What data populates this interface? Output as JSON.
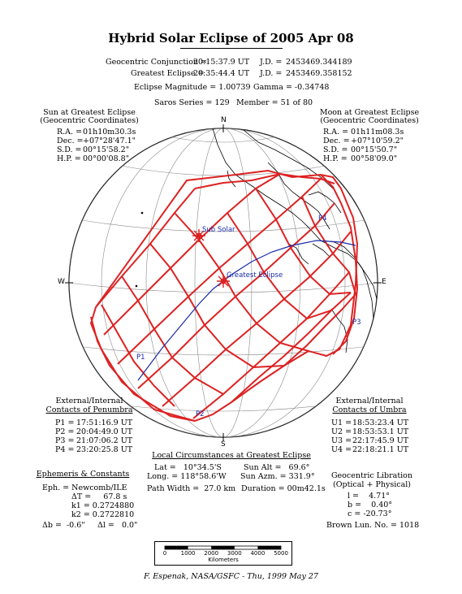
{
  "title": "Hybrid Solar Eclipse of 2005 Apr 08",
  "header": {
    "conj_label": "Geocentric Conjunction =",
    "conj_time": "20:15:37.9 UT",
    "conj_jd_label": "J.D. =",
    "conj_jd": "2453469.344189",
    "ge_label": "Greatest Eclipse =",
    "ge_time": "20:35:44.4 UT",
    "ge_jd_label": "J.D. =",
    "ge_jd": "2453469.358152",
    "magnitude": "Eclipse Magnitude = 1.00739",
    "gamma": "Gamma = -0.34748",
    "saros": "Saros Series = 129",
    "member": "Member = 51 of 80"
  },
  "sun": {
    "title1": "Sun at Greatest Eclipse",
    "title2": "(Geocentric Coordinates)",
    "rows": [
      {
        "label": "R.A. =",
        "value": "01h10m30.3s"
      },
      {
        "label": "Dec. =",
        "value": "+07°28'47.1\""
      },
      {
        "label": "S.D. =",
        "value": "00°15'58.2\""
      },
      {
        "label": "H.P. =",
        "value": "00°00'08.8\""
      }
    ]
  },
  "moon": {
    "title1": "Moon at Greatest Eclipse",
    "title2": "(Geocentric Coordinates)",
    "rows": [
      {
        "label": "R.A. =",
        "value": "01h11m08.3s"
      },
      {
        "label": "Dec. =",
        "value": "+07°10'59.2\""
      },
      {
        "label": "S.D. =",
        "value": "00°15'50.7\""
      },
      {
        "label": "H.P. =",
        "value": "00°58'09.0\""
      }
    ]
  },
  "compass": {
    "n": "N",
    "s": "S",
    "e": "E",
    "w": "W"
  },
  "map_labels": {
    "sub_solar": "Sub Solar",
    "greatest": "Greatest Eclipse",
    "p1": "P1",
    "p2": "P2",
    "p3": "P3",
    "p4": "P4"
  },
  "penumbra": {
    "title1": "External/Internal",
    "title2": "Contacts of Penumbra",
    "rows": [
      {
        "label": "P1 =",
        "value": "17:51:16.9 UT"
      },
      {
        "label": "P2 =",
        "value": "20:04:49.0 UT"
      },
      {
        "label": "P3 =",
        "value": "21:07:06.2 UT"
      },
      {
        "label": "P4 =",
        "value": "23:20:25.8 UT"
      }
    ]
  },
  "umbra": {
    "title1": "External/Internal",
    "title2": "Contacts of Umbra",
    "rows": [
      {
        "label": "U1 =",
        "value": "18:53:23.4 UT"
      },
      {
        "label": "U2 =",
        "value": "18:53:53.1 UT"
      },
      {
        "label": "U3 =",
        "value": "22:17:45.9 UT"
      },
      {
        "label": "U4 =",
        "value": "22:18:21.1 UT"
      }
    ]
  },
  "local": {
    "title": "Local Circumstances at Greatest Eclipse",
    "lat": "Lat =   10°34.5'S",
    "long": "Long. = 118°58.6'W",
    "sun_alt": "Sun Alt =   69.6°",
    "sun_azm": "Sun Azm. = 331.9°",
    "path_width": "Path Width =  27.0 km",
    "duration": "Duration = 00m42.1s"
  },
  "ephemeris": {
    "title": "Ephemeris & Constants",
    "eph": "Eph. = Newcomb/ILE",
    "dt": "ΔT =     67.8 s",
    "k1": "k1 = 0.2724880",
    "k2": "k2 = 0.2722810",
    "db": "Δb =  -0.6\"",
    "dl": "Δl =   0.0\""
  },
  "libration": {
    "title1": "Geocentric Libration",
    "title2": "(Optical + Physical)",
    "l": "l =    4.71°",
    "b": "b =    0.40°",
    "c": "c = -20.73°",
    "brown": "Brown Lun. No. = 1018"
  },
  "scale": {
    "ticks": [
      "0",
      "1000",
      "2000",
      "3000",
      "4000",
      "5000"
    ],
    "unit": "Kilometers"
  },
  "credit": "F. Espenak, NASA/GSFC - Thu, 1999 May 27",
  "colors": {
    "path": "#dd2222",
    "centerline": "#1a2aa8",
    "label": "#1a2aa8"
  }
}
